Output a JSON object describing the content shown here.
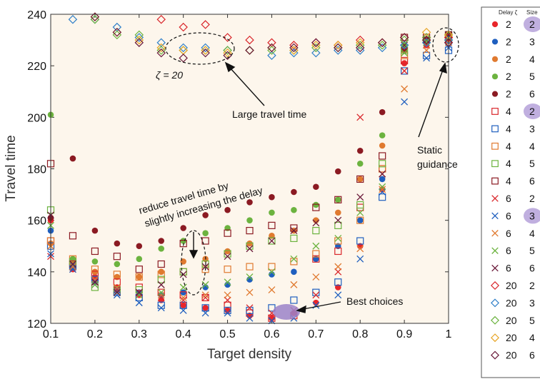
{
  "chart_data": {
    "type": "scatter",
    "xlabel": "Target density",
    "ylabel": "Travel time",
    "xlim": [
      0.1,
      1.0
    ],
    "ylim": [
      120,
      240
    ],
    "xticks": [
      "0.1",
      "0.2",
      "0.3",
      "0.4",
      "0.5",
      "0.6",
      "0.7",
      "0.8",
      "0.9",
      "1"
    ],
    "yticks": [
      "120",
      "140",
      "160",
      "180",
      "200",
      "220",
      "240"
    ],
    "background": "#fdf6ec",
    "legend": {
      "position": "right",
      "header_delay": "Delay ζ",
      "header_size": "Size"
    },
    "series": [
      {
        "delay": "2",
        "size": "2",
        "marker": "dot",
        "color": "#e8262b",
        "highlight": true,
        "x": [
          0.1,
          0.15,
          0.2,
          0.25,
          0.3,
          0.35,
          0.4,
          0.45,
          0.5,
          0.55,
          0.6,
          0.65,
          0.7,
          0.75,
          0.8,
          0.85,
          0.9,
          0.95,
          1.0
        ],
        "y": [
          160,
          141,
          138,
          134,
          131,
          129,
          127,
          126,
          125,
          123,
          122,
          124,
          128,
          134,
          150,
          172,
          221,
          228,
          231
        ]
      },
      {
        "delay": "2",
        "size": "3",
        "marker": "dot",
        "color": "#1f5fbf",
        "x": [
          0.1,
          0.15,
          0.2,
          0.25,
          0.3,
          0.35,
          0.4,
          0.45,
          0.5,
          0.55,
          0.6,
          0.65,
          0.7,
          0.75,
          0.8,
          0.85,
          0.9,
          0.95,
          1.0
        ],
        "y": [
          156,
          142,
          136,
          133,
          132,
          131,
          132,
          134,
          135,
          137,
          139,
          140,
          145,
          150,
          160,
          176,
          226,
          229,
          230
        ]
      },
      {
        "delay": "2",
        "size": "4",
        "marker": "dot",
        "color": "#e07a30",
        "x": [
          0.1,
          0.15,
          0.2,
          0.25,
          0.3,
          0.35,
          0.4,
          0.45,
          0.5,
          0.55,
          0.6,
          0.65,
          0.7,
          0.75,
          0.8,
          0.85,
          0.9,
          0.95,
          1.0
        ],
        "y": [
          151,
          144,
          140,
          138,
          138,
          140,
          144,
          145,
          148,
          151,
          154,
          156,
          160,
          163,
          176,
          189,
          226,
          229,
          231
        ]
      },
      {
        "delay": "2",
        "size": "5",
        "marker": "dot",
        "color": "#6cb33f",
        "x": [
          0.1,
          0.15,
          0.2,
          0.25,
          0.3,
          0.35,
          0.4,
          0.45,
          0.5,
          0.55,
          0.6,
          0.65,
          0.7,
          0.75,
          0.8,
          0.85,
          0.9,
          0.95,
          1.0
        ],
        "y": [
          201,
          145,
          144,
          143,
          145,
          149,
          152,
          155,
          157,
          160,
          163,
          164,
          166,
          168,
          182,
          193,
          228,
          230,
          232
        ]
      },
      {
        "delay": "2",
        "size": "6",
        "marker": "dot",
        "color": "#8b1a22",
        "x": [
          0.1,
          0.15,
          0.2,
          0.25,
          0.3,
          0.35,
          0.4,
          0.45,
          0.5,
          0.55,
          0.6,
          0.65,
          0.7,
          0.75,
          0.8,
          0.85,
          0.9,
          0.95,
          1.0
        ],
        "y": [
          161,
          184,
          156,
          151,
          150,
          152,
          157,
          162,
          164,
          167,
          169,
          171,
          173,
          179,
          187,
          202,
          226,
          230,
          231
        ]
      },
      {
        "delay": "4",
        "size": "2",
        "marker": "square",
        "color": "#d9262b",
        "highlight": true,
        "x": [
          0.1,
          0.15,
          0.2,
          0.25,
          0.3,
          0.35,
          0.4,
          0.45,
          0.5,
          0.55,
          0.6,
          0.65,
          0.7,
          0.75,
          0.8,
          0.85,
          0.9,
          0.95,
          1.0
        ],
        "y": [
          152,
          143,
          139,
          136,
          134,
          132,
          131,
          130,
          127,
          124,
          122,
          123,
          145,
          148,
          165,
          180,
          222,
          230,
          231
        ]
      },
      {
        "delay": "4",
        "size": "3",
        "marker": "square",
        "color": "#1f5fbf",
        "x": [
          0.1,
          0.15,
          0.2,
          0.25,
          0.3,
          0.35,
          0.4,
          0.45,
          0.5,
          0.55,
          0.6,
          0.65,
          0.7,
          0.75,
          0.8,
          0.85,
          0.9,
          0.95,
          1.0
        ],
        "y": [
          150,
          142,
          137,
          132,
          130,
          127,
          127,
          126,
          125,
          125,
          126,
          129,
          132,
          136,
          152,
          169,
          218,
          224,
          226
        ]
      },
      {
        "delay": "4",
        "size": "4",
        "marker": "square",
        "color": "#e07a30",
        "x": [
          0.1,
          0.15,
          0.2,
          0.25,
          0.3,
          0.35,
          0.4,
          0.45,
          0.5,
          0.55,
          0.6,
          0.65,
          0.7,
          0.75,
          0.8,
          0.85,
          0.9,
          0.95,
          1.0
        ],
        "y": [
          152,
          145,
          141,
          139,
          138,
          139,
          140,
          141,
          141,
          142,
          142,
          144,
          147,
          152,
          160,
          180,
          224,
          230,
          230
        ]
      },
      {
        "delay": "4",
        "size": "5",
        "marker": "square",
        "color": "#6cb33f",
        "x": [
          0.1,
          0.15,
          0.2,
          0.25,
          0.3,
          0.35,
          0.4,
          0.45,
          0.5,
          0.55,
          0.6,
          0.65,
          0.7,
          0.75,
          0.8,
          0.85,
          0.9,
          0.95,
          1.0
        ],
        "y": [
          164,
          144,
          134,
          133,
          133,
          137,
          140,
          143,
          147,
          150,
          152,
          153,
          156,
          158,
          166,
          182,
          226,
          230,
          232
        ]
      },
      {
        "delay": "4",
        "size": "6",
        "marker": "square",
        "color": "#8b1a22",
        "x": [
          0.1,
          0.15,
          0.2,
          0.25,
          0.3,
          0.35,
          0.4,
          0.45,
          0.5,
          0.55,
          0.6,
          0.65,
          0.7,
          0.75,
          0.8,
          0.85,
          0.9,
          0.95,
          1.0
        ],
        "y": [
          182,
          154,
          148,
          146,
          141,
          143,
          151,
          152,
          155,
          156,
          158,
          157,
          165,
          168,
          176,
          185,
          231,
          231,
          232
        ]
      },
      {
        "delay": "6",
        "size": "2",
        "marker": "x",
        "color": "#d9262b",
        "x": [
          0.1,
          0.15,
          0.2,
          0.25,
          0.3,
          0.35,
          0.4,
          0.45,
          0.5,
          0.55,
          0.6,
          0.65,
          0.7,
          0.75,
          0.8,
          0.85,
          0.9,
          0.95,
          1.0
        ],
        "y": [
          146,
          141,
          136,
          133,
          131,
          130,
          129,
          130,
          129,
          126,
          124,
          125,
          131,
          140,
          200,
          178,
          218,
          228,
          230
        ]
      },
      {
        "delay": "6",
        "size": "3",
        "marker": "x",
        "color": "#1f5fbf",
        "highlight": true,
        "x": [
          0.1,
          0.15,
          0.2,
          0.25,
          0.3,
          0.35,
          0.4,
          0.45,
          0.5,
          0.55,
          0.6,
          0.65,
          0.7,
          0.75,
          0.8,
          0.85,
          0.9,
          0.95,
          1.0
        ],
        "y": [
          147,
          141,
          135,
          131,
          128,
          126,
          125,
          124,
          124,
          122,
          121,
          122,
          127,
          131,
          145,
          171,
          206,
          223,
          227
        ]
      },
      {
        "delay": "6",
        "size": "4",
        "marker": "x",
        "color": "#e07a30",
        "x": [
          0.1,
          0.15,
          0.2,
          0.25,
          0.3,
          0.35,
          0.4,
          0.45,
          0.5,
          0.55,
          0.6,
          0.65,
          0.7,
          0.75,
          0.8,
          0.85,
          0.9,
          0.95,
          1.0
        ],
        "y": [
          150,
          142,
          137,
          134,
          132,
          131,
          130,
          131,
          131,
          132,
          133,
          135,
          138,
          142,
          149,
          172,
          211,
          226,
          229
        ]
      },
      {
        "delay": "6",
        "size": "5",
        "marker": "x",
        "color": "#6cb33f",
        "x": [
          0.1,
          0.15,
          0.2,
          0.25,
          0.3,
          0.35,
          0.4,
          0.45,
          0.5,
          0.55,
          0.6,
          0.65,
          0.7,
          0.75,
          0.8,
          0.85,
          0.9,
          0.95,
          1.0
        ],
        "y": [
          158,
          143,
          135,
          132,
          131,
          132,
          134,
          135,
          136,
          138,
          140,
          145,
          150,
          153,
          163,
          173,
          225,
          229,
          231
        ]
      },
      {
        "delay": "6",
        "size": "6",
        "marker": "x",
        "color": "#6b1a3a",
        "x": [
          0.1,
          0.15,
          0.2,
          0.25,
          0.3,
          0.35,
          0.4,
          0.45,
          0.5,
          0.55,
          0.6,
          0.65,
          0.7,
          0.75,
          0.8,
          0.85,
          0.9,
          0.95,
          1.0
        ],
        "y": [
          162,
          143,
          136,
          132,
          132,
          135,
          139,
          142,
          146,
          149,
          152,
          156,
          159,
          160,
          169,
          178,
          228,
          230,
          232
        ]
      },
      {
        "delay": "20",
        "size": "2",
        "marker": "diamond",
        "color": "#d9262b",
        "x": [
          0.35,
          0.4,
          0.45,
          0.5,
          0.55,
          0.6,
          0.65,
          0.7,
          0.75,
          0.8,
          0.85,
          0.9,
          0.95,
          1.0
        ],
        "y": [
          238,
          235,
          236,
          231,
          230,
          229,
          228,
          229,
          228,
          230,
          229,
          231,
          231,
          231
        ]
      },
      {
        "delay": "20",
        "size": "3",
        "marker": "diamond",
        "color": "#2f7fc8",
        "x": [
          0.15,
          0.2,
          0.25,
          0.3,
          0.35,
          0.4,
          0.45,
          0.5,
          0.55,
          0.6,
          0.65,
          0.7,
          0.75,
          0.8,
          0.85,
          0.9,
          0.95,
          1.0
        ],
        "y": [
          238,
          238,
          235,
          231,
          229,
          227,
          227,
          226,
          226,
          224,
          225,
          225,
          226,
          226,
          227,
          228,
          229,
          230
        ]
      },
      {
        "delay": "20",
        "size": "5",
        "marker": "diamond",
        "color": "#6cb33f",
        "x": [
          0.2,
          0.25,
          0.3,
          0.35,
          0.4,
          0.45,
          0.5,
          0.55,
          0.6,
          0.65,
          0.7,
          0.75,
          0.8,
          0.85,
          0.9,
          0.95,
          1.0
        ],
        "y": [
          238,
          232,
          232,
          226,
          226,
          226,
          226,
          226,
          226,
          226,
          227,
          227,
          228,
          228,
          230,
          231,
          232
        ]
      },
      {
        "delay": "20",
        "size": "4",
        "marker": "diamond",
        "color": "#e8a628",
        "x": [
          0.2,
          0.25,
          0.3,
          0.35,
          0.4,
          0.45,
          0.5,
          0.55,
          0.6,
          0.65,
          0.7,
          0.75,
          0.8,
          0.85,
          0.9,
          0.95,
          1.0
        ],
        "y": [
          239,
          233,
          230,
          227,
          226,
          226,
          225,
          226,
          227,
          226,
          228,
          228,
          229,
          229,
          231,
          233,
          232
        ]
      },
      {
        "delay": "20",
        "size": "6",
        "marker": "diamond",
        "color": "#6b1a3a",
        "x": [
          0.2,
          0.25,
          0.3,
          0.35,
          0.4,
          0.45,
          0.5,
          0.55,
          0.6,
          0.65,
          0.7,
          0.75,
          0.8,
          0.85,
          0.9,
          0.95,
          1.0
        ],
        "y": [
          239,
          233,
          229,
          225,
          223,
          225,
          224,
          226,
          227,
          227,
          229,
          227,
          227,
          229,
          231,
          230,
          229
        ]
      }
    ],
    "annotations": {
      "zeta_label": "ζ = 20",
      "large_travel": "Large travel time",
      "static_guidance_1": "Static",
      "static_guidance_2": "guidance",
      "reduce_1": "reduce travel time by",
      "reduce_2": "slightly increasing the delay",
      "best": "Best choices"
    }
  }
}
